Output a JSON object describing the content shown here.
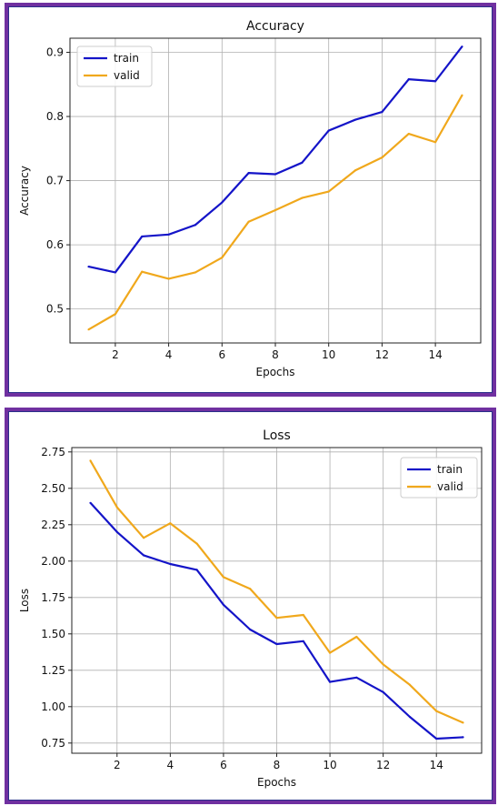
{
  "colors": {
    "frame": "#7030a0",
    "train": "#1414c8",
    "valid": "#f0a81c",
    "grid": "#b0b0b0"
  },
  "chart_data": [
    {
      "type": "line",
      "title": "Accuracy",
      "xlabel": "Epochs",
      "ylabel": "Accuracy",
      "x": [
        1,
        2,
        3,
        4,
        5,
        6,
        7,
        8,
        9,
        10,
        11,
        12,
        13,
        14,
        15
      ],
      "xlim": [
        0.3,
        15.7
      ],
      "ylim": [
        0.447,
        0.922
      ],
      "xticks": [
        2,
        4,
        6,
        8,
        10,
        12,
        14
      ],
      "yticks": [
        0.5,
        0.6,
        0.7,
        0.8,
        0.9
      ],
      "ytick_labels": [
        "0.5",
        "0.6",
        "0.7",
        "0.8",
        "0.9"
      ],
      "grid": true,
      "legend_position": "top-left",
      "series": [
        {
          "name": "train",
          "color": "#1414c8",
          "values": [
            0.566,
            0.557,
            0.613,
            0.616,
            0.631,
            0.666,
            0.712,
            0.71,
            0.728,
            0.778,
            0.795,
            0.807,
            0.858,
            0.855,
            0.909
          ]
        },
        {
          "name": "valid",
          "color": "#f0a81c",
          "values": [
            0.468,
            0.492,
            0.558,
            0.547,
            0.557,
            0.58,
            0.636,
            0.654,
            0.673,
            0.683,
            0.716,
            0.736,
            0.773,
            0.76,
            0.833
          ]
        }
      ]
    },
    {
      "type": "line",
      "title": "Loss",
      "xlabel": "Epochs",
      "ylabel": "Loss",
      "x": [
        1,
        2,
        3,
        4,
        5,
        6,
        7,
        8,
        9,
        10,
        11,
        12,
        13,
        14,
        15
      ],
      "xlim": [
        0.3,
        15.7
      ],
      "ylim": [
        0.68,
        2.78
      ],
      "xticks": [
        2,
        4,
        6,
        8,
        10,
        12,
        14
      ],
      "yticks": [
        0.75,
        1.0,
        1.25,
        1.5,
        1.75,
        2.0,
        2.25,
        2.5,
        2.75
      ],
      "ytick_labels": [
        "0.75",
        "1.00",
        "1.25",
        "1.50",
        "1.75",
        "2.00",
        "2.25",
        "2.50",
        "2.75"
      ],
      "grid": true,
      "legend_position": "top-right",
      "series": [
        {
          "name": "train",
          "color": "#1414c8",
          "values": [
            2.4,
            2.2,
            2.04,
            1.98,
            1.94,
            1.7,
            1.53,
            1.43,
            1.45,
            1.17,
            1.2,
            1.1,
            0.93,
            0.78,
            0.79
          ]
        },
        {
          "name": "valid",
          "color": "#f0a81c",
          "values": [
            2.69,
            2.37,
            2.16,
            2.26,
            2.12,
            1.89,
            1.81,
            1.61,
            1.63,
            1.37,
            1.48,
            1.29,
            1.15,
            0.97,
            0.89
          ]
        }
      ]
    }
  ]
}
